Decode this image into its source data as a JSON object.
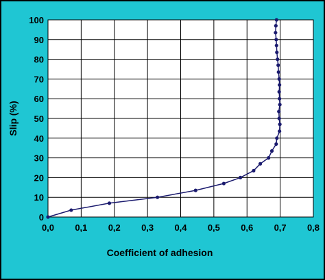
{
  "colors": {
    "background": "#1fc6d3",
    "plot_area": "#ffffff",
    "grid": "#000000",
    "series": "#1a1a6e"
  },
  "chart_data": {
    "type": "line",
    "xlabel": "Coefficient of adhesion",
    "ylabel": "Slip  (%)",
    "xlim": [
      0,
      0.8
    ],
    "ylim": [
      0,
      100
    ],
    "x_ticks": [
      "0,0",
      "0,1",
      "0,2",
      "0,3",
      "0,4",
      "0,5",
      "0,6",
      "0,7",
      "0,8"
    ],
    "y_ticks": [
      "0",
      "10",
      "20",
      "30",
      "40",
      "50",
      "60",
      "70",
      "80",
      "90",
      "100"
    ],
    "grid": true,
    "legend": "none",
    "series": [
      {
        "markers": true,
        "points": [
          {
            "x": 0.0,
            "y": 0
          },
          {
            "x": 0.07,
            "y": 3.5
          },
          {
            "x": 0.185,
            "y": 7
          },
          {
            "x": 0.33,
            "y": 10
          },
          {
            "x": 0.445,
            "y": 13.5
          },
          {
            "x": 0.53,
            "y": 17
          },
          {
            "x": 0.58,
            "y": 20
          },
          {
            "x": 0.62,
            "y": 23.5
          },
          {
            "x": 0.64,
            "y": 27
          },
          {
            "x": 0.665,
            "y": 30
          },
          {
            "x": 0.675,
            "y": 33.5
          },
          {
            "x": 0.688,
            "y": 37
          },
          {
            "x": 0.69,
            "y": 40
          },
          {
            "x": 0.698,
            "y": 43.5
          },
          {
            "x": 0.699,
            "y": 47
          },
          {
            "x": 0.697,
            "y": 50
          },
          {
            "x": 0.696,
            "y": 53.5
          },
          {
            "x": 0.699,
            "y": 57
          },
          {
            "x": 0.698,
            "y": 60
          },
          {
            "x": 0.697,
            "y": 63.5
          },
          {
            "x": 0.698,
            "y": 67
          },
          {
            "x": 0.697,
            "y": 70
          },
          {
            "x": 0.695,
            "y": 73.5
          },
          {
            "x": 0.694,
            "y": 77
          },
          {
            "x": 0.692,
            "y": 80
          },
          {
            "x": 0.69,
            "y": 83.5
          },
          {
            "x": 0.689,
            "y": 87
          },
          {
            "x": 0.688,
            "y": 90
          },
          {
            "x": 0.686,
            "y": 93.5
          },
          {
            "x": 0.687,
            "y": 97
          },
          {
            "x": 0.689,
            "y": 100
          }
        ]
      }
    ]
  }
}
